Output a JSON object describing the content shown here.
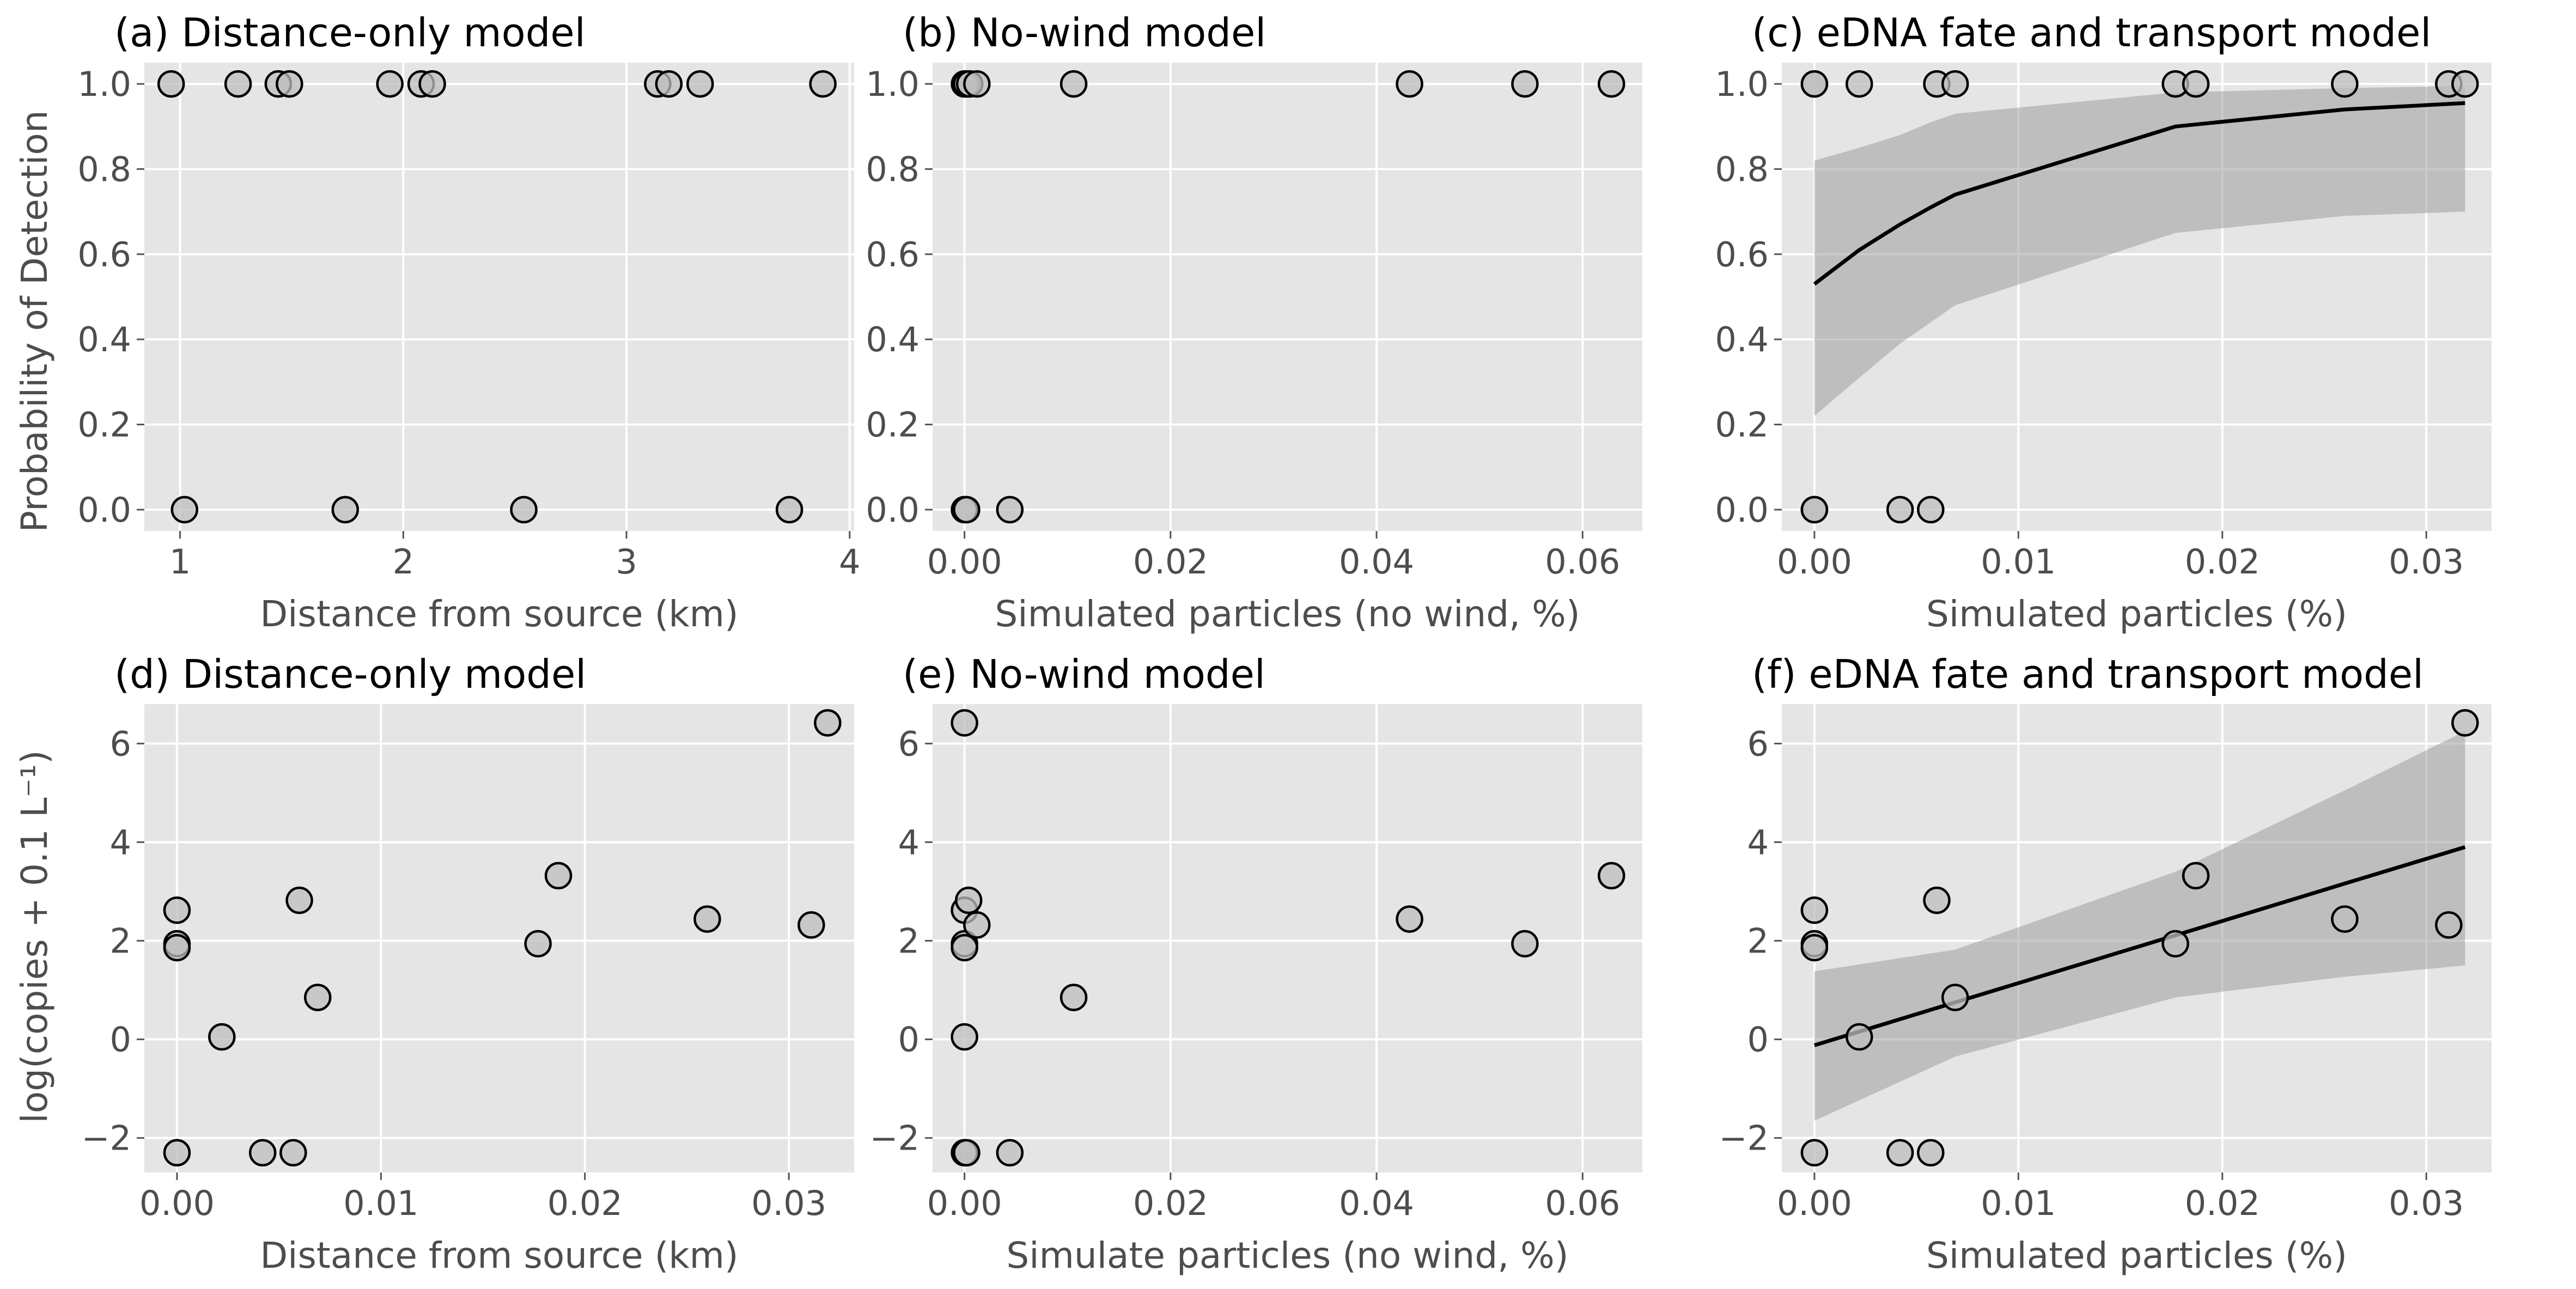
{
  "figure": {
    "ylabel_top": "Probability of Detection",
    "ylabel_bottom": "log(copies + 0.1 L⁻¹)"
  },
  "chart_data": [
    {
      "id": "a",
      "type": "scatter",
      "title": "(a) Distance-only model",
      "xlabel": "Distance from source (km)",
      "ylabel": "Probability of Detection",
      "xlim": [
        0.84,
        4.02
      ],
      "ylim": [
        -0.05,
        1.05
      ],
      "xticks": [
        1,
        2,
        3,
        4
      ],
      "xtick_labels": [
        "1",
        "2",
        "3",
        "4"
      ],
      "yticks": [
        0,
        0.2,
        0.4,
        0.6,
        0.8,
        1.0
      ],
      "ytick_labels": [
        "0.0",
        "0.2",
        "0.4",
        "0.6",
        "0.8",
        "1.0"
      ],
      "grid": true,
      "points": [
        {
          "x": 0.96,
          "y": 1
        },
        {
          "x": 1.26,
          "y": 1
        },
        {
          "x": 1.44,
          "y": 1
        },
        {
          "x": 1.49,
          "y": 1
        },
        {
          "x": 1.94,
          "y": 1
        },
        {
          "x": 2.08,
          "y": 1
        },
        {
          "x": 2.13,
          "y": 1
        },
        {
          "x": 3.14,
          "y": 1
        },
        {
          "x": 3.19,
          "y": 1
        },
        {
          "x": 3.33,
          "y": 1
        },
        {
          "x": 3.88,
          "y": 1
        },
        {
          "x": 1.02,
          "y": 0
        },
        {
          "x": 1.74,
          "y": 0
        },
        {
          "x": 2.54,
          "y": 0
        },
        {
          "x": 3.73,
          "y": 0
        }
      ]
    },
    {
      "id": "b",
      "type": "scatter",
      "title": "(b) No-wind model",
      "xlabel": "Simulated particles (no wind, %)",
      "ylabel": "",
      "xlim": [
        -0.0031,
        0.0658
      ],
      "ylim": [
        -0.05,
        1.05
      ],
      "xticks": [
        0,
        0.02,
        0.04,
        0.06
      ],
      "xtick_labels": [
        "0.00",
        "0.02",
        "0.04",
        "0.06"
      ],
      "yticks": [
        0,
        0.2,
        0.4,
        0.6,
        0.8,
        1.0
      ],
      "ytick_labels": [
        "0.0",
        "0.2",
        "0.4",
        "0.6",
        "0.8",
        "1.0"
      ],
      "grid": true,
      "points": [
        {
          "x": 0,
          "y": 1
        },
        {
          "x": 0.0002,
          "y": 1
        },
        {
          "x": 0.0005,
          "y": 1
        },
        {
          "x": 0.0012,
          "y": 1
        },
        {
          "x": 0.0106,
          "y": 1
        },
        {
          "x": 0.0432,
          "y": 1
        },
        {
          "x": 0.0544,
          "y": 1
        },
        {
          "x": 0.0628,
          "y": 1
        },
        {
          "x": 0,
          "y": 0
        },
        {
          "x": 0.0002,
          "y": 0
        },
        {
          "x": 0.0044,
          "y": 0
        }
      ]
    },
    {
      "id": "c",
      "type": "scatter",
      "title": "(c) eDNA fate and transport model",
      "xlabel": "Simulated particles (%)",
      "ylabel": "",
      "xlim": [
        -0.0016,
        0.0332
      ],
      "ylim": [
        -0.05,
        1.05
      ],
      "xticks": [
        0,
        0.01,
        0.02,
        0.03
      ],
      "xtick_labels": [
        "0.00",
        "0.01",
        "0.02",
        "0.03"
      ],
      "yticks": [
        0,
        0.2,
        0.4,
        0.6,
        0.8,
        1.0
      ],
      "ytick_labels": [
        "0.0",
        "0.2",
        "0.4",
        "0.6",
        "0.8",
        "1.0"
      ],
      "grid": true,
      "points": [
        {
          "x": 0,
          "y": 1
        },
        {
          "x": 0,
          "y": 1
        },
        {
          "x": 0.0022,
          "y": 1
        },
        {
          "x": 0.006,
          "y": 1
        },
        {
          "x": 0.0069,
          "y": 1
        },
        {
          "x": 0.0177,
          "y": 1
        },
        {
          "x": 0.0187,
          "y": 1
        },
        {
          "x": 0.026,
          "y": 1
        },
        {
          "x": 0.0311,
          "y": 1
        },
        {
          "x": 0.0319,
          "y": 1
        },
        {
          "x": 0,
          "y": 0
        },
        {
          "x": 0,
          "y": 0
        },
        {
          "x": 0.0042,
          "y": 0
        },
        {
          "x": 0.0057,
          "y": 0
        }
      ],
      "fit": {
        "x": [
          0,
          0.0022,
          0.0042,
          0.0057,
          0.0069,
          0.0177,
          0.026,
          0.0319
        ],
        "y": [
          0.53,
          0.61,
          0.67,
          0.71,
          0.74,
          0.9,
          0.94,
          0.955
        ],
        "lower": [
          0.22,
          0.31,
          0.39,
          0.44,
          0.48,
          0.65,
          0.69,
          0.7
        ],
        "upper": [
          0.82,
          0.85,
          0.88,
          0.91,
          0.93,
          0.98,
          0.99,
          0.995
        ]
      }
    },
    {
      "id": "d",
      "type": "scatter",
      "title": "(d) Distance-only model",
      "xlabel": "Distance from source (km)",
      "ylabel": "log(copies + 0.1 L⁻¹)",
      "xlim": [
        -0.0016,
        0.0332
      ],
      "ylim": [
        -2.7,
        6.8
      ],
      "xticks": [
        0,
        0.01,
        0.02,
        0.03
      ],
      "xtick_labels": [
        "0.00",
        "0.01",
        "0.02",
        "0.03"
      ],
      "yticks": [
        -2,
        0,
        2,
        4,
        6
      ],
      "ytick_labels": [
        "−2",
        "0",
        "2",
        "4",
        "6"
      ],
      "grid": true,
      "points": [
        {
          "x": 0,
          "y": 2.62
        },
        {
          "x": 0,
          "y": 1.94
        },
        {
          "x": 0,
          "y": 1.86
        },
        {
          "x": 0,
          "y": -2.3
        },
        {
          "x": 0.0022,
          "y": 0.05
        },
        {
          "x": 0.0042,
          "y": -2.3
        },
        {
          "x": 0.0057,
          "y": -2.3
        },
        {
          "x": 0.006,
          "y": 2.82
        },
        {
          "x": 0.0069,
          "y": 0.85
        },
        {
          "x": 0.0177,
          "y": 1.94
        },
        {
          "x": 0.0187,
          "y": 3.32
        },
        {
          "x": 0.026,
          "y": 2.44
        },
        {
          "x": 0.0311,
          "y": 2.32
        },
        {
          "x": 0.0319,
          "y": 6.42
        }
      ]
    },
    {
      "id": "e",
      "type": "scatter",
      "title": "(e) No-wind model",
      "xlabel": "Simulate particles (no wind, %)",
      "ylabel": "",
      "xlim": [
        -0.0031,
        0.0658
      ],
      "ylim": [
        -2.7,
        6.8
      ],
      "xticks": [
        0,
        0.02,
        0.04,
        0.06
      ],
      "xtick_labels": [
        "0.00",
        "0.02",
        "0.04",
        "0.06"
      ],
      "yticks": [
        -2,
        0,
        2,
        4,
        6
      ],
      "ytick_labels": [
        "−2",
        "0",
        "2",
        "4",
        "6"
      ],
      "grid": true,
      "points": [
        {
          "x": 0,
          "y": 6.42
        },
        {
          "x": 0,
          "y": 2.62
        },
        {
          "x": 0,
          "y": 1.94
        },
        {
          "x": 0,
          "y": 1.86
        },
        {
          "x": 0,
          "y": 0.05
        },
        {
          "x": 0,
          "y": -2.3
        },
        {
          "x": 0.0002,
          "y": -2.3
        },
        {
          "x": 0.0004,
          "y": 2.82
        },
        {
          "x": 0.0012,
          "y": 2.32
        },
        {
          "x": 0.0106,
          "y": 0.85
        },
        {
          "x": 0.0044,
          "y": -2.3
        },
        {
          "x": 0.0432,
          "y": 2.44
        },
        {
          "x": 0.0544,
          "y": 1.94
        },
        {
          "x": 0.0628,
          "y": 3.32
        }
      ]
    },
    {
      "id": "f",
      "type": "scatter",
      "title": "(f) eDNA fate and transport model",
      "xlabel": "Simulated particles (%)",
      "ylabel": "",
      "xlim": [
        -0.0016,
        0.0332
      ],
      "ylim": [
        -2.7,
        6.8
      ],
      "xticks": [
        0,
        0.01,
        0.02,
        0.03
      ],
      "xtick_labels": [
        "0.00",
        "0.01",
        "0.02",
        "0.03"
      ],
      "yticks": [
        -2,
        0,
        2,
        4,
        6
      ],
      "ytick_labels": [
        "−2",
        "0",
        "2",
        "4",
        "6"
      ],
      "grid": true,
      "points": [
        {
          "x": 0,
          "y": 2.62
        },
        {
          "x": 0,
          "y": 1.94
        },
        {
          "x": 0,
          "y": 1.86
        },
        {
          "x": 0,
          "y": -2.3
        },
        {
          "x": 0.0022,
          "y": 0.05
        },
        {
          "x": 0.0042,
          "y": -2.3
        },
        {
          "x": 0.0057,
          "y": -2.3
        },
        {
          "x": 0.006,
          "y": 2.82
        },
        {
          "x": 0.0069,
          "y": 0.85
        },
        {
          "x": 0.0177,
          "y": 1.94
        },
        {
          "x": 0.0187,
          "y": 3.32
        },
        {
          "x": 0.026,
          "y": 2.44
        },
        {
          "x": 0.0311,
          "y": 2.32
        },
        {
          "x": 0.0319,
          "y": 6.42
        }
      ],
      "fit": {
        "x": [
          0,
          0.0069,
          0.0177,
          0.026,
          0.0319
        ],
        "y": [
          -0.12,
          0.75,
          2.11,
          3.16,
          3.9
        ],
        "lower": [
          -1.65,
          -0.35,
          0.85,
          1.27,
          1.5
        ],
        "upper": [
          1.38,
          1.82,
          3.4,
          5.05,
          6.25
        ]
      }
    }
  ]
}
